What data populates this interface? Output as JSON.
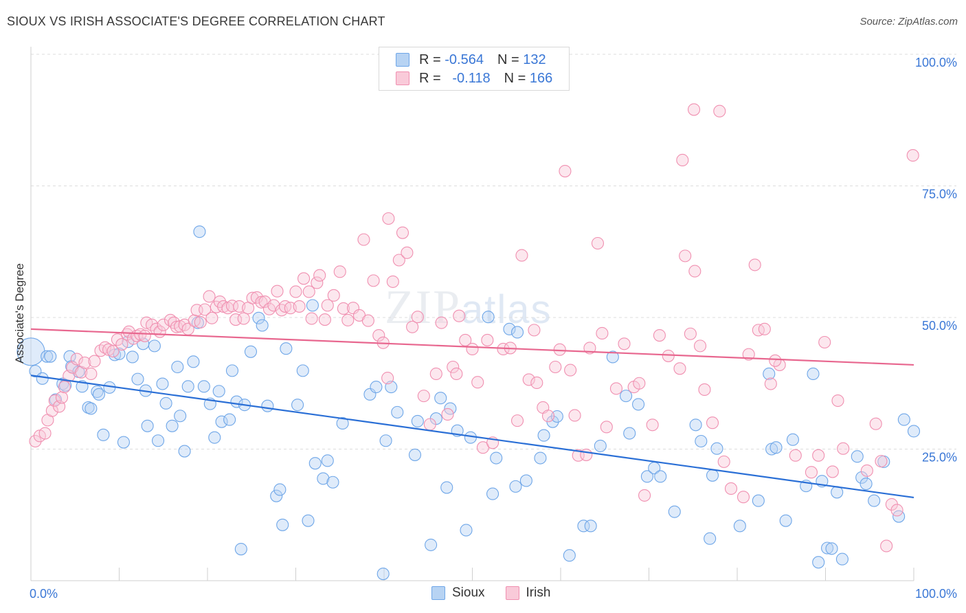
{
  "title": "SIOUX VS IRISH ASSOCIATE'S DEGREE CORRELATION CHART",
  "source": "Source: ZipAtlas.com",
  "watermark": {
    "zip": "ZIP",
    "atlas": "atlas"
  },
  "legend": {
    "rows": [
      {
        "r_label": "R =",
        "r_value": "-0.564",
        "n_label": "N =",
        "n_value": "132",
        "color": "#6ea6e8",
        "fill": "#b7d3f3"
      },
      {
        "r_label": "R =",
        "r_value": "-0.118",
        "n_label": "N =",
        "n_value": "166",
        "color": "#f08fb0",
        "fill": "#f9cad9"
      }
    ]
  },
  "bottom_legend": [
    {
      "label": "Sioux",
      "color": "#6ea6e8",
      "fill": "#b7d3f3"
    },
    {
      "label": "Irish",
      "color": "#f08fb0",
      "fill": "#f9cad9"
    }
  ],
  "chart_data": {
    "type": "scatter",
    "title": "SIOUX VS IRISH ASSOCIATE'S DEGREE CORRELATION CHART",
    "xlabel": "",
    "ylabel": "Associate's Degree",
    "xlim": [
      0,
      100
    ],
    "ylim": [
      0,
      100
    ],
    "x_tick_labels": [
      "0.0%",
      "100.0%"
    ],
    "y_tick_labels": [
      "25.0%",
      "50.0%",
      "75.0%",
      "100.0%"
    ],
    "y_ticks": [
      25,
      50,
      75,
      100
    ],
    "grid": "horizontal dashed",
    "legend_position": "top-center",
    "series": [
      {
        "name": "Sioux",
        "color": "#6ea6e8",
        "trend": {
          "x": [
            0,
            100
          ],
          "y": [
            39.0,
            15.8
          ]
        },
        "points": [
          [
            0,
            43.5
          ],
          [
            0.5,
            39.8
          ],
          [
            1.3,
            38.4
          ],
          [
            1.8,
            42.6
          ],
          [
            2.2,
            42.6
          ],
          [
            2.8,
            34.4
          ],
          [
            3.6,
            37.4
          ],
          [
            3.9,
            37.1
          ],
          [
            4.4,
            42.6
          ],
          [
            4.6,
            40.7
          ],
          [
            5.4,
            39.7
          ],
          [
            5.8,
            36.9
          ],
          [
            6.5,
            32.9
          ],
          [
            6.8,
            32.7
          ],
          [
            7.5,
            35.9
          ],
          [
            7.7,
            35.4
          ],
          [
            8.2,
            27.7
          ],
          [
            8.9,
            36.7
          ],
          [
            9.5,
            42.9
          ],
          [
            10.0,
            43.1
          ],
          [
            10.5,
            26.3
          ],
          [
            11.0,
            45.4
          ],
          [
            11.5,
            42.5
          ],
          [
            12.1,
            38.3
          ],
          [
            12.7,
            45.0
          ],
          [
            13.0,
            36.1
          ],
          [
            13.2,
            29.4
          ],
          [
            14.0,
            44.6
          ],
          [
            14.4,
            26.6
          ],
          [
            14.9,
            37.4
          ],
          [
            15.3,
            33.7
          ],
          [
            16.0,
            29.4
          ],
          [
            16.6,
            40.6
          ],
          [
            16.9,
            31.3
          ],
          [
            17.4,
            24.6
          ],
          [
            17.8,
            36.9
          ],
          [
            18.4,
            41.6
          ],
          [
            18.9,
            49.0
          ],
          [
            19.1,
            66.3
          ],
          [
            19.6,
            36.9
          ],
          [
            20.3,
            33.6
          ],
          [
            20.8,
            27.2
          ],
          [
            21.3,
            36.0
          ],
          [
            21.6,
            30.2
          ],
          [
            22.5,
            30.6
          ],
          [
            22.8,
            39.9
          ],
          [
            23.3,
            34.0
          ],
          [
            23.8,
            6.0
          ],
          [
            24.2,
            33.4
          ],
          [
            24.9,
            43.5
          ],
          [
            25.8,
            49.9
          ],
          [
            26.2,
            48.5
          ],
          [
            26.8,
            33.2
          ],
          [
            27.8,
            16.1
          ],
          [
            28.2,
            17.3
          ],
          [
            28.5,
            10.6
          ],
          [
            28.9,
            44.1
          ],
          [
            30.2,
            33.4
          ],
          [
            30.8,
            39.9
          ],
          [
            31.4,
            11.4
          ],
          [
            31.9,
            52.3
          ],
          [
            32.2,
            22.3
          ],
          [
            33.1,
            19.4
          ],
          [
            33.6,
            22.8
          ],
          [
            34.2,
            18.7
          ],
          [
            35.3,
            29.9
          ],
          [
            38.4,
            35.4
          ],
          [
            39.1,
            36.8
          ],
          [
            39.9,
            1.3
          ],
          [
            40.2,
            26.6
          ],
          [
            40.8,
            36.8
          ],
          [
            41.5,
            32.0
          ],
          [
            43.5,
            23.9
          ],
          [
            43.8,
            30.3
          ],
          [
            45.3,
            6.8
          ],
          [
            45.9,
            30.8
          ],
          [
            46.4,
            34.7
          ],
          [
            47.1,
            17.7
          ],
          [
            47.5,
            32.7
          ],
          [
            48.3,
            28.5
          ],
          [
            49.3,
            9.6
          ],
          [
            49.8,
            27.2
          ],
          [
            51.8,
            50.1
          ],
          [
            52.3,
            16.5
          ],
          [
            52.7,
            23.3
          ],
          [
            54.2,
            47.8
          ],
          [
            54.9,
            17.9
          ],
          [
            55.1,
            47.2
          ],
          [
            56.1,
            19.0
          ],
          [
            57.7,
            23.3
          ],
          [
            58.1,
            27.6
          ],
          [
            59.1,
            30.2
          ],
          [
            59.6,
            31.2
          ],
          [
            61.0,
            4.8
          ],
          [
            62.6,
            10.4
          ],
          [
            63.4,
            10.4
          ],
          [
            64.5,
            25.6
          ],
          [
            65.9,
            42.5
          ],
          [
            67.4,
            35.1
          ],
          [
            67.8,
            28.0
          ],
          [
            68.8,
            33.5
          ],
          [
            69.8,
            19.8
          ],
          [
            70.6,
            21.4
          ],
          [
            71.3,
            19.8
          ],
          [
            72.9,
            13.1
          ],
          [
            75.3,
            29.6
          ],
          [
            75.9,
            26.5
          ],
          [
            76.9,
            8.0
          ],
          [
            77.2,
            20.0
          ],
          [
            77.7,
            25.1
          ],
          [
            80.3,
            10.4
          ],
          [
            82.4,
            15.2
          ],
          [
            83.6,
            39.3
          ],
          [
            83.9,
            25.0
          ],
          [
            84.4,
            25.3
          ],
          [
            85.5,
            11.4
          ],
          [
            86.3,
            26.8
          ],
          [
            87.8,
            18.0
          ],
          [
            88.6,
            39.3
          ],
          [
            89.2,
            3.5
          ],
          [
            89.6,
            18.9
          ],
          [
            90.2,
            6.2
          ],
          [
            90.7,
            6.1
          ],
          [
            91.3,
            16.8
          ],
          [
            91.9,
            4.1
          ],
          [
            93.6,
            23.6
          ],
          [
            94.1,
            19.6
          ],
          [
            94.6,
            18.4
          ],
          [
            95.5,
            15.2
          ],
          [
            96.6,
            22.6
          ],
          [
            98.3,
            12.2
          ],
          [
            100.0,
            28.4
          ],
          [
            98.9,
            30.6
          ]
        ]
      },
      {
        "name": "Irish",
        "color": "#f08fb0",
        "trend": {
          "x": [
            0,
            100
          ],
          "y": [
            47.8,
            41.0
          ]
        },
        "points": [
          [
            0.5,
            26.5
          ],
          [
            1.0,
            27.5
          ],
          [
            1.6,
            28.0
          ],
          [
            1.9,
            30.5
          ],
          [
            2.4,
            32.3
          ],
          [
            2.7,
            34.2
          ],
          [
            3.2,
            33.1
          ],
          [
            3.5,
            34.8
          ],
          [
            3.8,
            36.8
          ],
          [
            4.3,
            38.9
          ],
          [
            4.7,
            40.5
          ],
          [
            5.2,
            42.1
          ],
          [
            5.7,
            39.6
          ],
          [
            6.1,
            41.4
          ],
          [
            6.8,
            39.3
          ],
          [
            7.2,
            41.7
          ],
          [
            7.9,
            43.7
          ],
          [
            8.4,
            44.3
          ],
          [
            8.8,
            43.9
          ],
          [
            9.3,
            43.6
          ],
          [
            9.8,
            45.8
          ],
          [
            10.3,
            44.9
          ],
          [
            10.9,
            46.8
          ],
          [
            11.1,
            47.3
          ],
          [
            11.6,
            46.0
          ],
          [
            12.0,
            46.5
          ],
          [
            12.4,
            46.8
          ],
          [
            12.9,
            46.5
          ],
          [
            13.1,
            49.0
          ],
          [
            13.7,
            48.6
          ],
          [
            14.2,
            47.8
          ],
          [
            14.6,
            47.3
          ],
          [
            15.0,
            48.6
          ],
          [
            15.8,
            49.5
          ],
          [
            16.2,
            49.0
          ],
          [
            16.5,
            48.2
          ],
          [
            16.9,
            48.3
          ],
          [
            17.4,
            48.6
          ],
          [
            17.8,
            47.8
          ],
          [
            18.5,
            49.4
          ],
          [
            18.8,
            51.4
          ],
          [
            19.2,
            49.1
          ],
          [
            19.7,
            51.5
          ],
          [
            20.2,
            54.0
          ],
          [
            20.5,
            49.9
          ],
          [
            21.0,
            52.0
          ],
          [
            21.4,
            53.0
          ],
          [
            21.8,
            52.1
          ],
          [
            22.3,
            51.8
          ],
          [
            22.8,
            52.2
          ],
          [
            23.2,
            49.6
          ],
          [
            23.6,
            52.1
          ],
          [
            24.1,
            49.8
          ],
          [
            24.6,
            51.8
          ],
          [
            25.1,
            53.7
          ],
          [
            25.6,
            53.8
          ],
          [
            26.1,
            52.9
          ],
          [
            26.5,
            53.0
          ],
          [
            27.0,
            51.6
          ],
          [
            27.5,
            52.3
          ],
          [
            27.9,
            55.0
          ],
          [
            28.4,
            51.4
          ],
          [
            28.8,
            52.1
          ],
          [
            29.4,
            51.8
          ],
          [
            30.0,
            54.9
          ],
          [
            30.4,
            52.1
          ],
          [
            30.9,
            57.4
          ],
          [
            31.5,
            54.9
          ],
          [
            31.8,
            49.8
          ],
          [
            32.4,
            56.6
          ],
          [
            32.7,
            58.0
          ],
          [
            33.3,
            49.6
          ],
          [
            33.6,
            52.3
          ],
          [
            34.3,
            54.2
          ],
          [
            35.0,
            58.7
          ],
          [
            35.4,
            51.7
          ],
          [
            35.9,
            49.5
          ],
          [
            36.5,
            51.8
          ],
          [
            37.2,
            50.4
          ],
          [
            38.2,
            49.4
          ],
          [
            38.8,
            57.0
          ],
          [
            39.4,
            46.6
          ],
          [
            39.9,
            45.2
          ],
          [
            40.4,
            38.5
          ],
          [
            41.0,
            56.8
          ],
          [
            41.7,
            60.9
          ],
          [
            42.1,
            66.1
          ],
          [
            42.6,
            62.3
          ],
          [
            43.2,
            48.2
          ],
          [
            43.8,
            50.1
          ],
          [
            44.5,
            35.1
          ],
          [
            45.2,
            29.7
          ],
          [
            45.9,
            39.3
          ],
          [
            46.5,
            49.0
          ],
          [
            47.2,
            31.6
          ],
          [
            47.8,
            40.6
          ],
          [
            48.2,
            39.3
          ],
          [
            48.5,
            50.3
          ],
          [
            49.2,
            45.7
          ],
          [
            50.0,
            44.0
          ],
          [
            50.6,
            37.7
          ],
          [
            51.2,
            25.3
          ],
          [
            51.7,
            45.7
          ],
          [
            52.3,
            26.2
          ],
          [
            53.5,
            44.0
          ],
          [
            54.3,
            44.2
          ],
          [
            55.1,
            30.4
          ],
          [
            55.6,
            61.8
          ],
          [
            56.4,
            38.2
          ],
          [
            57.0,
            47.6
          ],
          [
            57.3,
            37.6
          ],
          [
            58.0,
            32.9
          ],
          [
            58.6,
            31.3
          ],
          [
            59.4,
            40.6
          ],
          [
            59.9,
            43.9
          ],
          [
            61.1,
            40.0
          ],
          [
            61.6,
            31.4
          ],
          [
            62.0,
            23.8
          ],
          [
            62.9,
            23.9
          ],
          [
            63.3,
            44.2
          ],
          [
            64.2,
            64.1
          ],
          [
            64.7,
            47.0
          ],
          [
            65.2,
            29.2
          ],
          [
            66.3,
            36.5
          ],
          [
            67.2,
            45.0
          ],
          [
            68.3,
            36.8
          ],
          [
            68.9,
            37.5
          ],
          [
            69.5,
            16.2
          ],
          [
            70.4,
            29.6
          ],
          [
            71.2,
            46.6
          ],
          [
            72.2,
            42.7
          ],
          [
            73.5,
            40.3
          ],
          [
            74.1,
            61.7
          ],
          [
            74.7,
            46.9
          ],
          [
            75.2,
            58.8
          ],
          [
            75.8,
            44.6
          ],
          [
            76.3,
            36.3
          ],
          [
            77.2,
            30.0
          ],
          [
            78.5,
            22.6
          ],
          [
            79.3,
            17.5
          ],
          [
            80.7,
            15.9
          ],
          [
            81.3,
            43.0
          ],
          [
            82.0,
            60.0
          ],
          [
            82.4,
            47.6
          ],
          [
            83.1,
            47.8
          ],
          [
            83.8,
            37.4
          ],
          [
            84.8,
            41.0
          ],
          [
            86.6,
            23.8
          ],
          [
            88.4,
            20.6
          ],
          [
            89.2,
            23.8
          ],
          [
            90.8,
            20.7
          ],
          [
            92.0,
            25.1
          ],
          [
            94.7,
            20.9
          ],
          [
            95.7,
            29.8
          ],
          [
            96.3,
            22.7
          ],
          [
            97.5,
            14.5
          ],
          [
            98.1,
            13.4
          ],
          [
            99.9,
            80.8
          ],
          [
            75.1,
            89.5
          ],
          [
            78.0,
            89.2
          ],
          [
            73.8,
            79.9
          ],
          [
            60.5,
            77.8
          ],
          [
            40.5,
            68.8
          ],
          [
            37.7,
            64.8
          ],
          [
            84.3,
            41.8
          ],
          [
            89.9,
            45.3
          ],
          [
            91.4,
            34.2
          ],
          [
            96.9,
            6.6
          ]
        ]
      }
    ]
  }
}
